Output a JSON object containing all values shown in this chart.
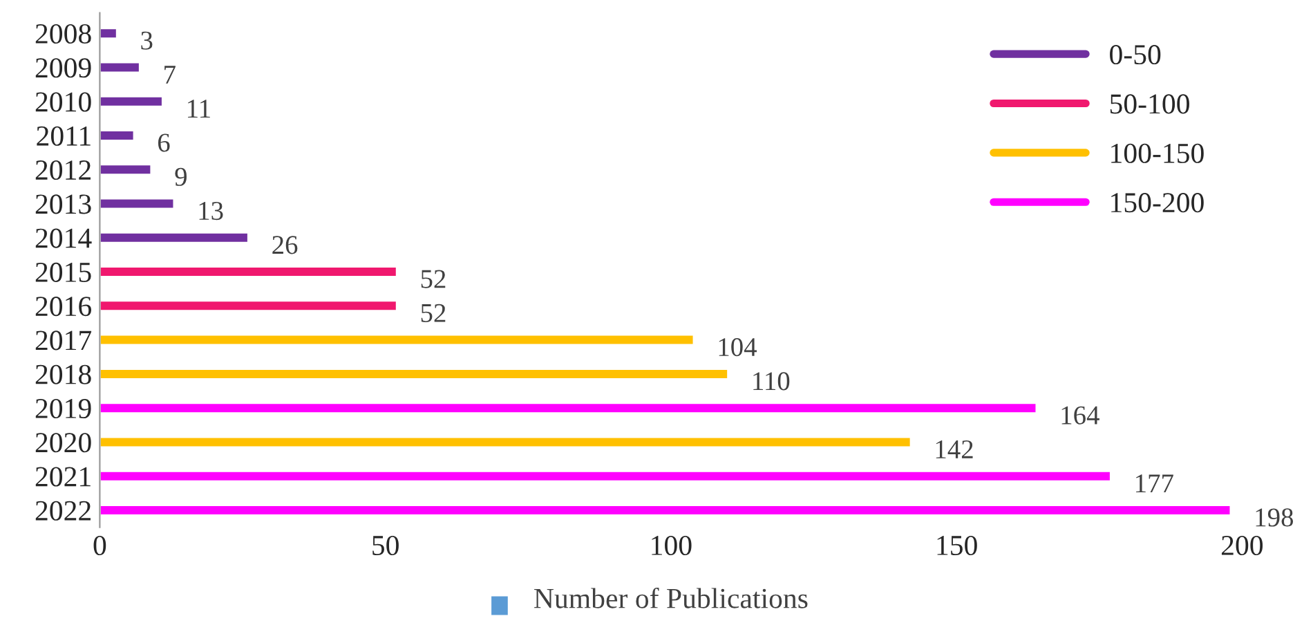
{
  "chart_data": {
    "type": "bar",
    "orientation": "horizontal",
    "categories": [
      "2008",
      "2009",
      "2010",
      "2011",
      "2012",
      "2013",
      "2014",
      "2015",
      "2016",
      "2017",
      "2018",
      "2019",
      "2020",
      "2021",
      "2022"
    ],
    "series": [
      {
        "name": "0-50",
        "color": "#7030a0",
        "values": [
          3,
          7,
          11,
          6,
          9,
          13,
          26,
          null,
          null,
          null,
          null,
          null,
          null,
          null,
          null
        ]
      },
      {
        "name": "50-100",
        "color": "#f0186e",
        "values": [
          null,
          null,
          null,
          null,
          null,
          null,
          null,
          52,
          52,
          null,
          null,
          null,
          null,
          null,
          null
        ]
      },
      {
        "name": "100-150",
        "color": "#ffc000",
        "values": [
          null,
          null,
          null,
          null,
          null,
          null,
          null,
          null,
          null,
          104,
          110,
          null,
          142,
          null,
          null
        ]
      },
      {
        "name": "150-200",
        "color": "#ff00ff",
        "values": [
          null,
          null,
          null,
          null,
          null,
          null,
          null,
          null,
          null,
          null,
          null,
          164,
          null,
          177,
          198
        ]
      }
    ],
    "xlim": [
      0,
      200
    ],
    "xticks": [
      0,
      50,
      100,
      150,
      200
    ],
    "xlabel": "Number of Publications",
    "data_labels": true,
    "legend": "top right",
    "grid": false
  }
}
